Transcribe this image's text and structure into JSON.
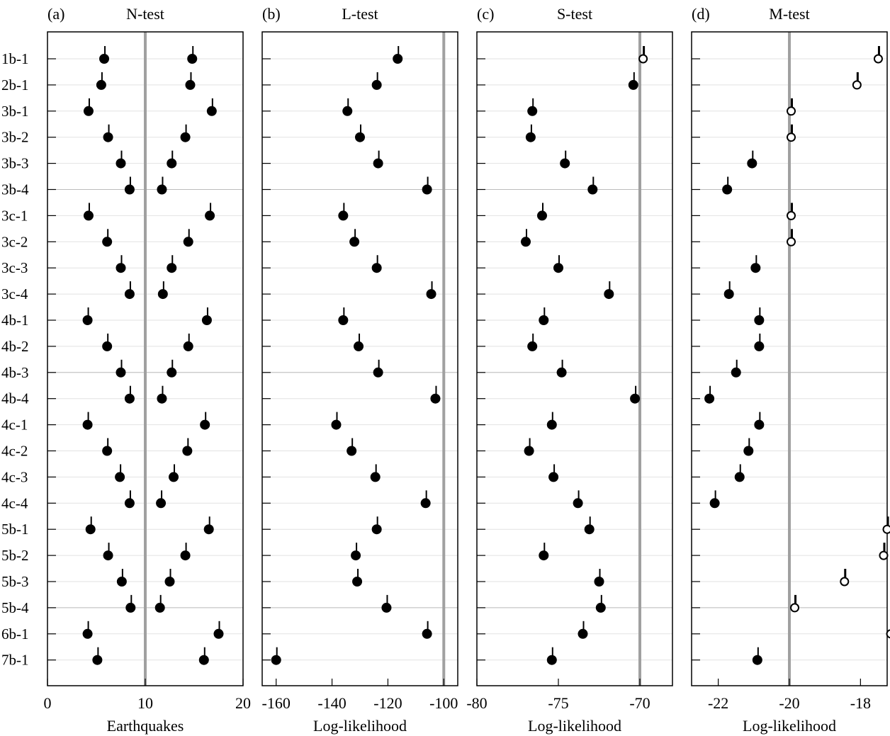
{
  "chart_data": {
    "type": "scatter",
    "rows": [
      "1b-1",
      "2b-1",
      "3b-1",
      "3b-2",
      "3b-3",
      "3b-4",
      "3c-1",
      "3c-2",
      "3c-3",
      "3c-4",
      "4b-1",
      "4b-2",
      "4b-3",
      "4b-4",
      "4c-1",
      "4c-2",
      "4c-3",
      "4c-4",
      "5b-1",
      "5b-2",
      "5b-3",
      "5b-4",
      "6b-1",
      "7b-1"
    ],
    "panels": [
      {
        "letter": "(a)",
        "title": "N-test",
        "xlabel": "Earthquakes",
        "xlim": [
          0,
          20
        ],
        "xticks": [
          0,
          10,
          20
        ],
        "tick_labels": [
          "0",
          "10",
          "20"
        ],
        "observed": 10,
        "series": [
          {
            "values": [
              5.8,
              5.5,
              4.2,
              6.2,
              7.5,
              8.4,
              4.2,
              6.1,
              7.5,
              8.4,
              4.1,
              6.1,
              7.5,
              8.4,
              4.1,
              6.1,
              7.4,
              8.4,
              4.4,
              6.2,
              7.6,
              8.5,
              4.1,
              5.1
            ],
            "open": [
              false,
              false,
              false,
              false,
              false,
              false,
              false,
              false,
              false,
              false,
              false,
              false,
              false,
              false,
              false,
              false,
              false,
              false,
              false,
              false,
              false,
              false,
              false,
              false
            ]
          },
          {
            "values": [
              14.8,
              14.6,
              16.8,
              14.1,
              12.7,
              11.7,
              16.6,
              14.4,
              12.7,
              11.8,
              16.3,
              14.4,
              12.7,
              11.7,
              16.1,
              14.3,
              12.9,
              11.6,
              16.5,
              14.1,
              12.5,
              11.5,
              17.5,
              16.0
            ],
            "open": [
              false,
              false,
              false,
              false,
              false,
              false,
              false,
              false,
              false,
              false,
              false,
              false,
              false,
              false,
              false,
              false,
              false,
              false,
              false,
              false,
              false,
              false,
              false,
              false
            ]
          }
        ]
      },
      {
        "letter": "(b)",
        "title": "L-test",
        "xlabel": "Log-likelihood",
        "xlim": [
          -165,
          -95
        ],
        "xticks": [
          -160,
          -140,
          -120,
          -100
        ],
        "tick_labels": [
          "-160",
          "-140",
          "-120",
          "-100"
        ],
        "observed": -100,
        "series": [
          {
            "values": [
              -116.5,
              -124,
              -134.5,
              -130,
              -123.5,
              -106,
              -136,
              -132,
              -124,
              -104.5,
              -136,
              -130.5,
              -123.5,
              -103,
              -138.5,
              -133,
              -124.5,
              -106.5,
              -124,
              -131.5,
              -131,
              -120.5,
              -106,
              -160
            ],
            "open": [
              false,
              false,
              false,
              false,
              false,
              false,
              false,
              false,
              false,
              false,
              false,
              false,
              false,
              false,
              false,
              false,
              false,
              false,
              false,
              false,
              false,
              false,
              false,
              false
            ]
          }
        ]
      },
      {
        "letter": "(c)",
        "title": "S-test",
        "xlabel": "Log-likelihood",
        "xlim": [
          -80,
          -68
        ],
        "xticks": [
          -80,
          -75,
          -70
        ],
        "tick_labels": [
          "-80",
          "-75",
          "-70"
        ],
        "observed": -70,
        "series": [
          {
            "values": [
              -69.8,
              -70.4,
              -76.6,
              -76.7,
              -74.6,
              -72.9,
              -76,
              -77,
              -75,
              -71.9,
              -75.9,
              -76.6,
              -74.8,
              -70.3,
              -75.4,
              -76.8,
              -75.3,
              -73.8,
              -73.1,
              -75.9,
              -72.5,
              -72.4,
              -73.5,
              -75.4
            ],
            "open": [
              true,
              false,
              false,
              false,
              false,
              false,
              false,
              false,
              false,
              false,
              false,
              false,
              false,
              false,
              false,
              false,
              false,
              false,
              false,
              false,
              false,
              false,
              false,
              false
            ]
          }
        ]
      },
      {
        "letter": "(d)",
        "title": "M-test",
        "xlabel": "Log-likelihood",
        "xlim": [
          -22.75,
          -17.25
        ],
        "xticks": [
          -22,
          -20,
          -18
        ],
        "tick_labels": [
          "-22",
          "-20",
          "-18"
        ],
        "observed": -20,
        "series": [
          {
            "values": [
              -17.5,
              -18.1,
              -19.95,
              -19.95,
              -21.05,
              -21.75,
              -19.95,
              -19.95,
              -20.95,
              -21.7,
              -20.85,
              -20.85,
              -21.5,
              -22.25,
              -20.85,
              -21.15,
              -21.4,
              -22.1,
              -17.25,
              -17.35,
              -18.45,
              -19.85,
              -17.15,
              -20.9
            ],
            "open": [
              true,
              true,
              true,
              true,
              false,
              false,
              true,
              true,
              false,
              false,
              false,
              false,
              false,
              false,
              false,
              false,
              false,
              false,
              true,
              true,
              true,
              true,
              true,
              false
            ]
          }
        ]
      }
    ]
  }
}
